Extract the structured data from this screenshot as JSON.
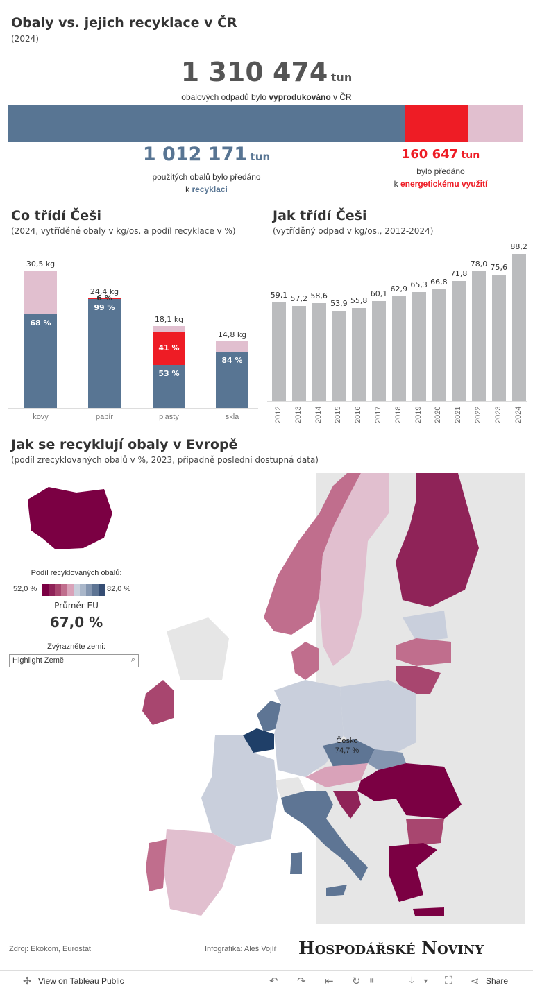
{
  "header": {
    "title": "Obaly vs. jejich recyklace v ČR",
    "year": "(2024)"
  },
  "summary": {
    "total_value": "1 310 474",
    "total_unit": "tun",
    "total_text_pre": "obalových odpadů bylo ",
    "total_text_bold": "vyprodukováno",
    "total_text_post": " v ČR",
    "recycled_value": "1 012 171",
    "recycled_unit": "tun",
    "recycled_text_line1": "použitých obalů bylo předáno",
    "recycled_text_pre": "k ",
    "recycled_text_bold": "recyklaci",
    "energy_value": "160 647",
    "energy_unit": "tun",
    "energy_text_line1": "bylo předáno",
    "energy_text_pre": "k ",
    "energy_text_bold": "energetickému využití",
    "bar_shares": {
      "recycled": 0.7724,
      "energy": 0.1226,
      "rest": 0.105
    }
  },
  "colors": {
    "recycled": "#587593",
    "energy": "#ee1c25",
    "rest": "#e1bfcf",
    "bar_gray": "#bbbcbe",
    "text_dark": "#444444",
    "map_low": "#7b0043",
    "map_high": "#1f3f68"
  },
  "sort_chart": {
    "title": "Co třídí Češi",
    "subtitle": "(2024, vytříděné obaly v kg/os. a podíl recyklace v %)",
    "chart_data": {
      "type": "bar",
      "categories": [
        "kovy",
        "papír",
        "plasty",
        "skla"
      ],
      "totals_kg": [
        30.5,
        24.4,
        18.1,
        14.8
      ],
      "total_labels": [
        "30,5 kg",
        "24,4 kg",
        "18,1 kg",
        "14,8 kg"
      ],
      "recycled_pct": [
        68,
        99,
        53,
        84
      ],
      "recycled_labels": [
        "68 %",
        "99 %",
        "53 %",
        "84 %"
      ],
      "energy_pct": [
        0,
        6,
        41,
        0
      ],
      "energy_labels": [
        "",
        "6 %",
        "41 %",
        ""
      ],
      "ylim": [
        0,
        30.5
      ]
    }
  },
  "trend_chart": {
    "title": "Jak třídí Češi",
    "subtitle": "(vytříděný odpad v kg/os., 2012-2024)",
    "chart_data": {
      "type": "bar",
      "x": [
        "2012",
        "2013",
        "2014",
        "2015",
        "2016",
        "2017",
        "2018",
        "2019",
        "2020",
        "2021",
        "2022",
        "2023",
        "2024"
      ],
      "values": [
        59.1,
        57.2,
        58.6,
        53.9,
        55.8,
        60.1,
        62.9,
        65.3,
        66.8,
        71.8,
        78.0,
        75.6,
        88.2
      ],
      "value_labels": [
        "59,1",
        "57,2",
        "58,6",
        "53,9",
        "55,8",
        "60,1",
        "62,9",
        "65,3",
        "66,8",
        "71,8",
        "78,0",
        "75,6",
        "88,2"
      ],
      "ylim": [
        0,
        88.2
      ]
    }
  },
  "map": {
    "title": "Jak se recyklují obaly v Evropě",
    "subtitle": "(podíl zrecyklovaných obalů v %, 2023, případně poslední dostupná data)",
    "legend_title": "Podíl recyklovaných obalů:",
    "legend_min": "52,0 %",
    "legend_max": "82,0 %",
    "legend_colors": [
      "#7b0043",
      "#8f2358",
      "#a8466f",
      "#c06e8d",
      "#d9a2b9",
      "#c9cfdc",
      "#a9b6c9",
      "#8496b0",
      "#5e7594",
      "#354d73"
    ],
    "eu_avg_label": "Průměr EU",
    "eu_avg_value": "67,0 %",
    "highlight_label": "Zvýrazněte zemi:",
    "highlight_placeholder": "Highlight Země",
    "cz_label": "Česko",
    "cz_value": "74,7 %"
  },
  "footer": {
    "source": "Zdroj: Ekokom, Eurostat",
    "credit": "Infografika: Aleš Vojíř",
    "logo": "Hospodářské Noviny",
    "view_on": "View on Tableau Public",
    "share": "Share"
  }
}
